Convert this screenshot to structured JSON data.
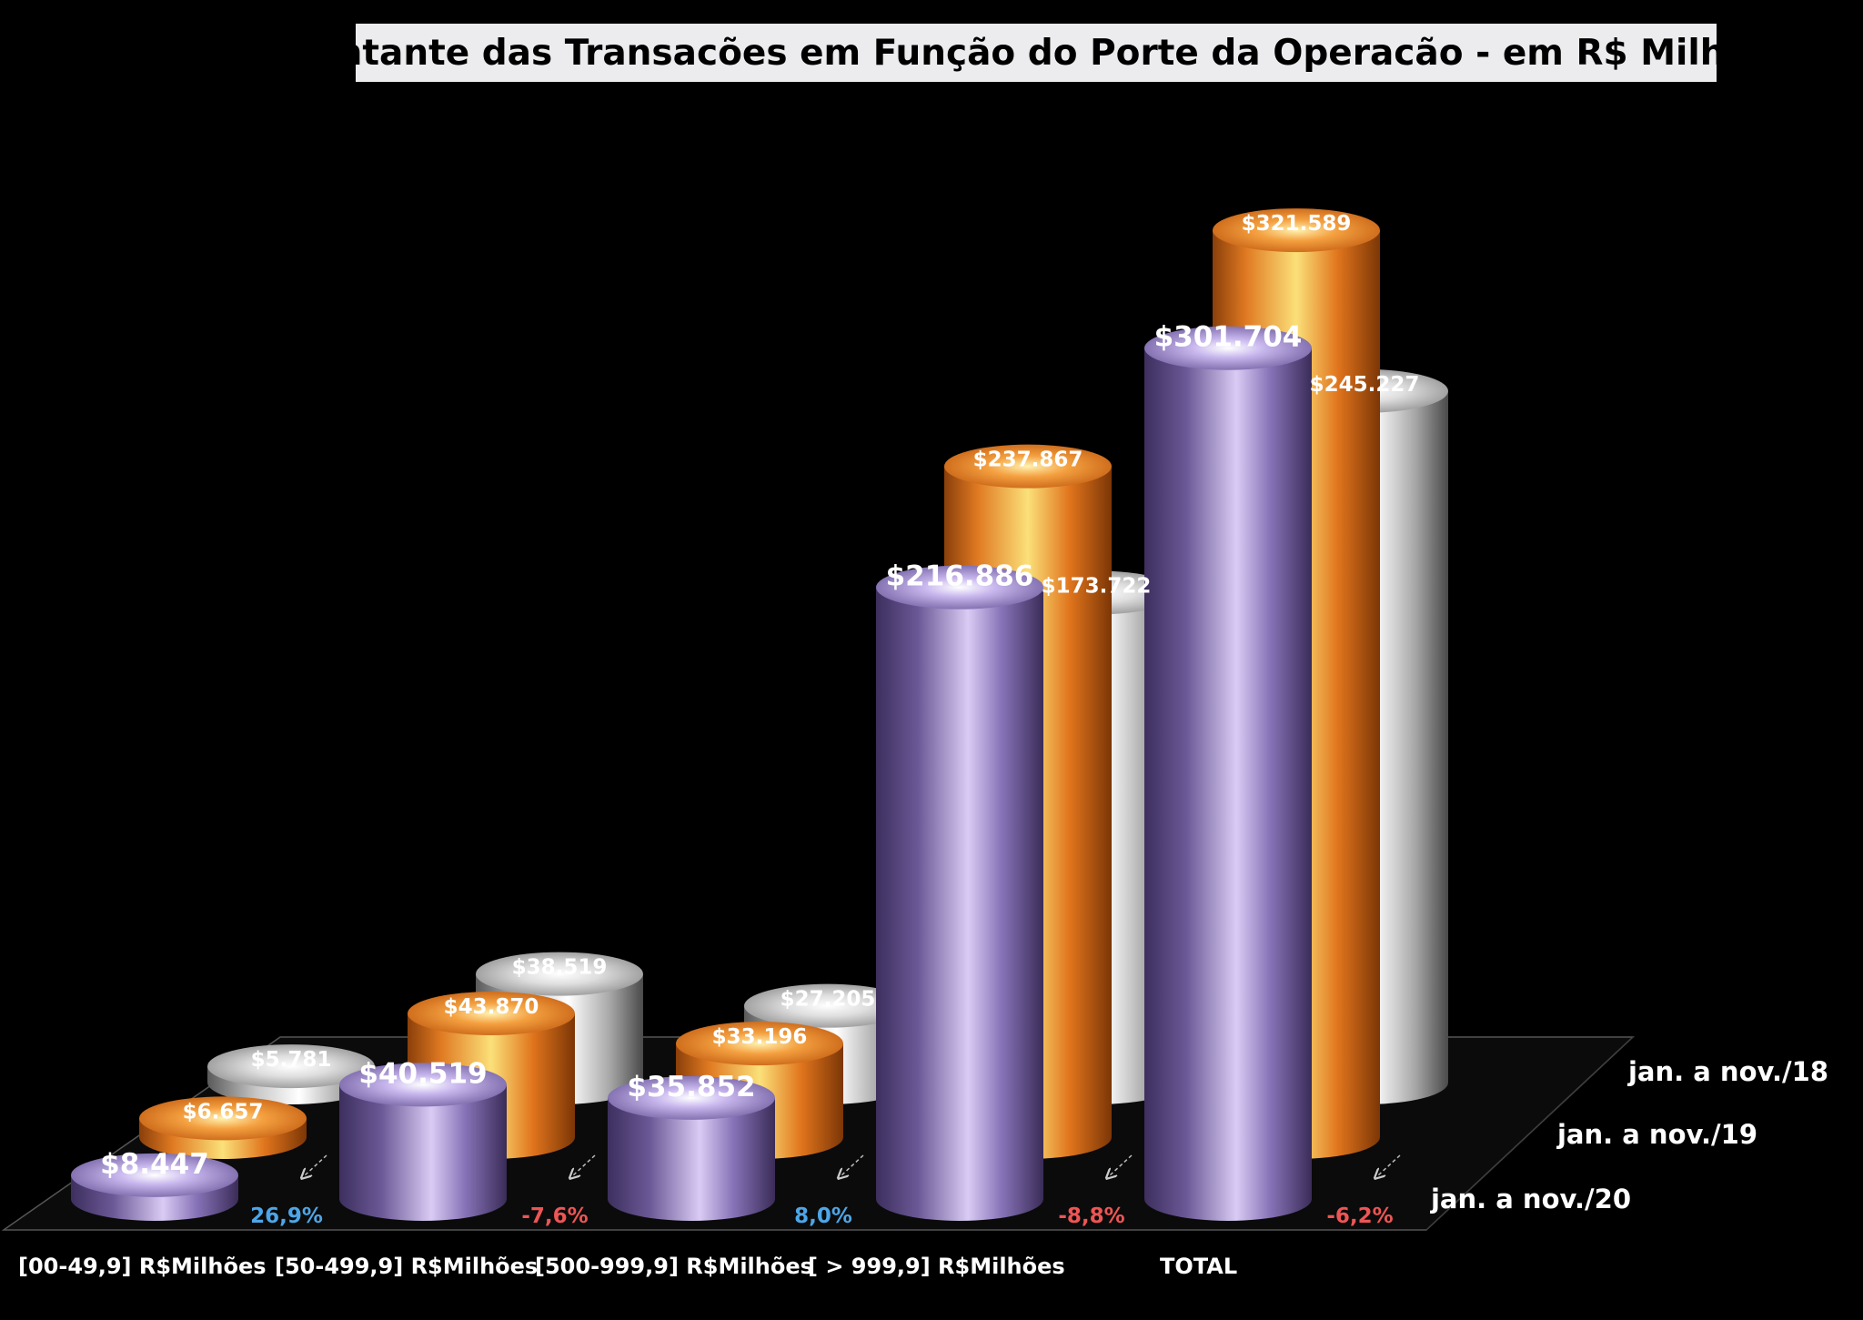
{
  "chart_data": {
    "type": "bar",
    "title": "Montante das Transacões em Função do Porte da Operacão - em R$ Milhões",
    "categories": [
      "[00-49,9] R$Milhões",
      "[50-499,9] R$Milhões",
      "[500-999,9] R$Milhões",
      "[ > 999,9] R$Milhões",
      "TOTAL"
    ],
    "series": [
      {
        "name": "jan. a nov./18",
        "values": [
          5781,
          38519,
          27205,
          173722,
          245227
        ],
        "labels": [
          "$5.781",
          "$38.519",
          "$27.205",
          "$173.722",
          "$245.227"
        ],
        "color": "#b8b8b8"
      },
      {
        "name": "jan. a nov./19",
        "values": [
          6657,
          43870,
          33196,
          237867,
          321589
        ],
        "labels": [
          "$6.657",
          "$43.870",
          "$33.196",
          "$237.867",
          "$321.589"
        ],
        "color": "#e07a22"
      },
      {
        "name": "jan. a nov./20",
        "values": [
          8447,
          40519,
          35852,
          216886,
          301704
        ],
        "labels": [
          "$8.447",
          "$40.519",
          "$35.852",
          "$216.886",
          "$301.704"
        ],
        "color": "#7a64a8"
      }
    ],
    "variation": [
      {
        "category": "[00-49,9] R$Milhões",
        "label": "26,9%",
        "color": "#4da6e8"
      },
      {
        "category": "[50-499,9] R$Milhões",
        "label": "-7,6%",
        "color": "#ee5555"
      },
      {
        "category": "[500-999,9] R$Milhões",
        "label": "8,0%",
        "color": "#4da6e8"
      },
      {
        "category": "[ > 999,9] R$Milhões",
        "label": "-8,8%",
        "color": "#ee5555"
      },
      {
        "category": "TOTAL",
        "label": "-6,2%",
        "color": "#ee5555"
      }
    ],
    "xlabel": "",
    "ylabel": "",
    "ylim": [
      0,
      330000
    ],
    "grid": false,
    "legend": "right"
  }
}
